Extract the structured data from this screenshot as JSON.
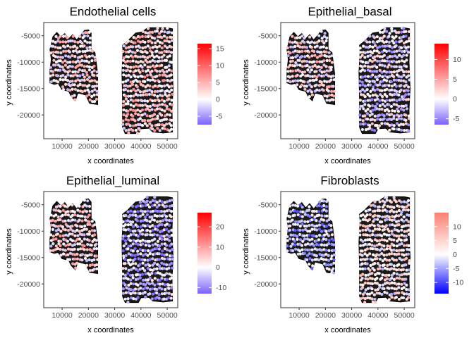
{
  "chart_data": [
    {
      "type": "scatter",
      "title": "Endothelial cells",
      "xlabel": "x coordinates",
      "ylabel": "y coordinates",
      "xlim": [
        3000,
        54000
      ],
      "ylim": [
        -24500,
        -2500
      ],
      "xticks": [
        10000,
        20000,
        30000,
        40000,
        50000
      ],
      "xtick_labels": [
        "10000",
        "20000",
        "30000",
        "40000",
        "50000"
      ],
      "yticks": [
        -5000,
        -10000,
        -15000,
        -20000
      ],
      "ytick_labels": [
        "-5000",
        "-10000",
        "-15000",
        "-20000"
      ],
      "colorbar": {
        "min": -7.5,
        "max": 16.5,
        "ticks": [
          15,
          10,
          5,
          0,
          -5
        ],
        "tick_labels": [
          "15",
          "10",
          "5",
          "0",
          "-5"
        ],
        "colors": [
          "#7b61ff",
          "#ffffff",
          "#ff0000"
        ]
      },
      "tissue_left_score": 1.5,
      "tissue_right_score": 2.5
    },
    {
      "type": "scatter",
      "title": "Epithelial_basal",
      "xlabel": "x coordinates",
      "ylabel": "y coordinates",
      "xlim": [
        3000,
        54000
      ],
      "ylim": [
        -24500,
        -2500
      ],
      "xticks": [
        10000,
        20000,
        30000,
        40000,
        50000
      ],
      "xtick_labels": [
        "10000",
        "20000",
        "30000",
        "40000",
        "50000"
      ],
      "yticks": [
        -5000,
        -10000,
        -15000,
        -20000
      ],
      "ytick_labels": [
        "-5000",
        "-10000",
        "-15000",
        "-20000"
      ],
      "colorbar": {
        "min": -6.5,
        "max": 14,
        "ticks": [
          10,
          5,
          0,
          -5
        ],
        "tick_labels": [
          "10",
          "5",
          "0",
          "-5"
        ],
        "colors": [
          "#7b61ff",
          "#ffffff",
          "#ff0000"
        ]
      },
      "tissue_left_score": 1.0,
      "tissue_right_score": -1.0
    },
    {
      "type": "scatter",
      "title": "Epithelial_luminal",
      "xlabel": "x coordinates",
      "ylabel": "y coordinates",
      "xlim": [
        3000,
        54000
      ],
      "ylim": [
        -24500,
        -2500
      ],
      "xticks": [
        10000,
        20000,
        30000,
        40000,
        50000
      ],
      "xtick_labels": [
        "10000",
        "20000",
        "30000",
        "40000",
        "50000"
      ],
      "yticks": [
        -5000,
        -10000,
        -15000,
        -20000
      ],
      "ytick_labels": [
        "-5000",
        "-10000",
        "-15000",
        "-20000"
      ],
      "colorbar": {
        "min": -13,
        "max": 27,
        "ticks": [
          20,
          10,
          0,
          -10
        ],
        "tick_labels": [
          "20",
          "10",
          "0",
          "-10"
        ],
        "colors": [
          "#7b61ff",
          "#ffffff",
          "#ff0000"
        ]
      },
      "tissue_left_score": 3.0,
      "tissue_right_score": -5.0
    },
    {
      "type": "scatter",
      "title": "Fibroblasts",
      "xlabel": "x coordinates",
      "ylabel": "y coordinates",
      "xlim": [
        3000,
        54000
      ],
      "ylim": [
        -24500,
        -2500
      ],
      "xticks": [
        10000,
        20000,
        30000,
        40000,
        50000
      ],
      "xtick_labels": [
        "10000",
        "20000",
        "30000",
        "40000",
        "50000"
      ],
      "yticks": [
        -5000,
        -10000,
        -15000,
        -20000
      ],
      "ytick_labels": [
        "-5000",
        "-10000",
        "-15000",
        "-20000"
      ],
      "colorbar": {
        "min": -14,
        "max": 15,
        "ticks": [
          10,
          5,
          0,
          -5,
          -10
        ],
        "tick_labels": [
          "10",
          "5",
          "0",
          "-5",
          "-10"
        ],
        "colors": [
          "#0000ff",
          "#ffffff",
          "#fa8072"
        ]
      },
      "tissue_left_score": -3.0,
      "tissue_right_score": 2.0
    }
  ]
}
